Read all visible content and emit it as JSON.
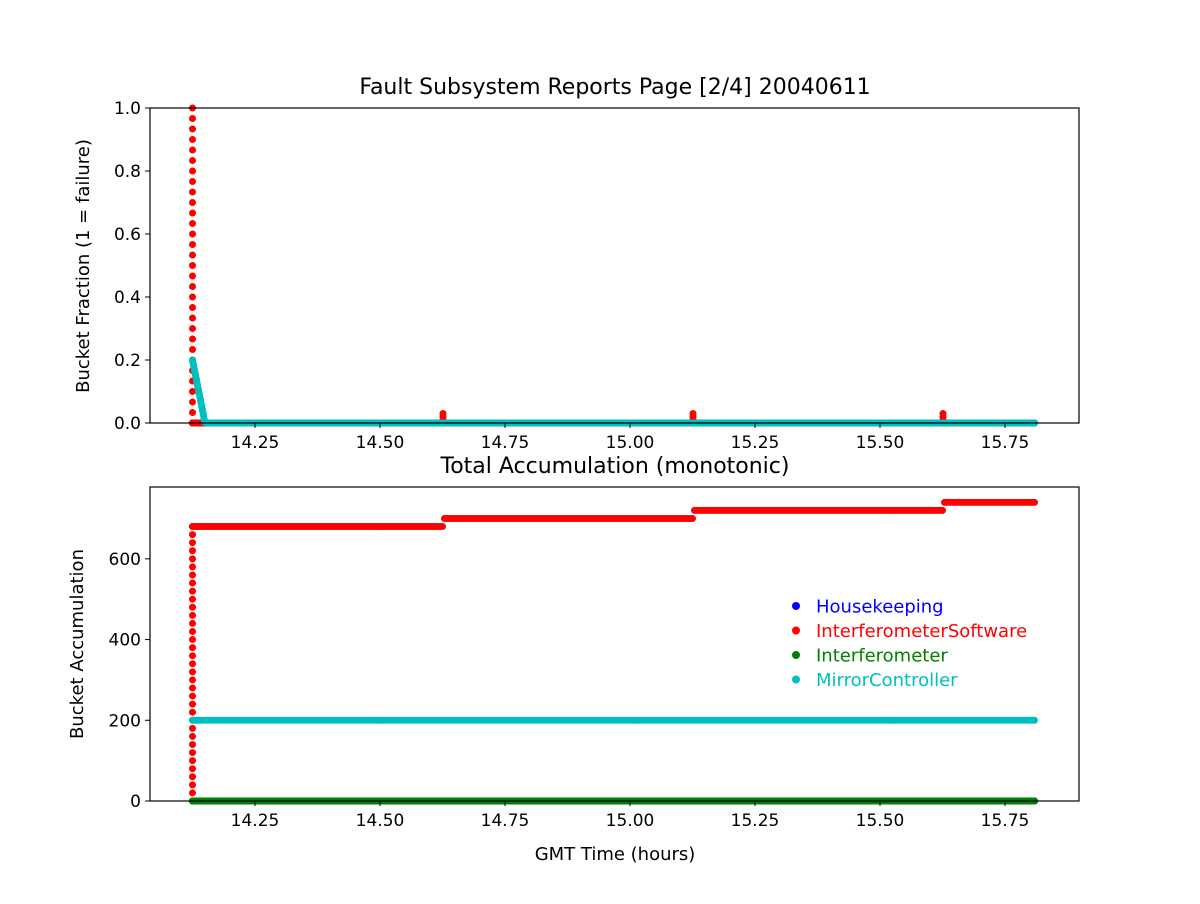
{
  "chart_data": [
    {
      "type": "scatter",
      "title": "Fault Subsystem Reports Page [2/4] 20040611",
      "xlabel": "",
      "ylabel": "Bucket Fraction (1 = failure)",
      "xlim": [
        14.04,
        15.898
      ],
      "ylim": [
        0,
        1.0
      ],
      "xticks": [
        "14.25",
        "14.50",
        "14.75",
        "15.00",
        "15.25",
        "15.50",
        "15.75"
      ],
      "yticks": [
        "0.0",
        "0.2",
        "0.4",
        "0.6",
        "0.8",
        "1.0"
      ],
      "grid": false,
      "x_range": [
        14.125,
        15.81
      ],
      "series": [
        {
          "key": "Housekeeping",
          "color": "#0000ff",
          "baseline": 0,
          "events": []
        },
        {
          "key": "InterferometerSoftware",
          "color": "#ff0000",
          "baseline": 0,
          "events": [
            {
              "x": 14.125,
              "ramp_to": 1.0
            },
            {
              "x": 14.626,
              "ramp_to": 0.03
            },
            {
              "x": 15.126,
              "ramp_to": 0.03
            },
            {
              "x": 15.626,
              "ramp_to": 0.03
            }
          ]
        },
        {
          "key": "Interferometer",
          "color": "#008000",
          "baseline": 0,
          "events": []
        },
        {
          "key": "MirrorController",
          "color": "#00bfbf",
          "baseline": 0,
          "decay": {
            "x0": 14.125,
            "y0": 0.2,
            "x1": 14.15,
            "y1": 0
          }
        }
      ]
    },
    {
      "type": "scatter",
      "title": "Total Accumulation (monotonic)",
      "xlabel": "GMT Time (hours)",
      "ylabel": "Bucket Accumulation",
      "xlim": [
        14.04,
        15.898
      ],
      "ylim": [
        0,
        778
      ],
      "xticks": [
        "14.25",
        "14.50",
        "14.75",
        "15.00",
        "15.25",
        "15.50",
        "15.75"
      ],
      "yticks": [
        "0",
        "200",
        "400",
        "600"
      ],
      "grid": false,
      "legend": "center-right",
      "x_range": [
        14.125,
        15.81
      ],
      "series": [
        {
          "name": "Housekeeping",
          "color": "#0000ff",
          "steps": [
            {
              "x": 14.125,
              "y": 0
            }
          ]
        },
        {
          "name": "InterferometerSoftware",
          "color": "#ff0000",
          "ramp": {
            "x": 14.125,
            "from": 0,
            "to": 680
          },
          "steps": [
            {
              "x": 14.125,
              "y": 680
            },
            {
              "x": 14.626,
              "y": 700
            },
            {
              "x": 15.126,
              "y": 720
            },
            {
              "x": 15.626,
              "y": 740
            }
          ]
        },
        {
          "name": "Interferometer",
          "color": "#008000",
          "steps": [
            {
              "x": 14.125,
              "y": 0
            }
          ]
        },
        {
          "name": "MirrorController",
          "color": "#00bfbf",
          "steps": [
            {
              "x": 14.125,
              "y": 200
            }
          ]
        }
      ]
    }
  ]
}
